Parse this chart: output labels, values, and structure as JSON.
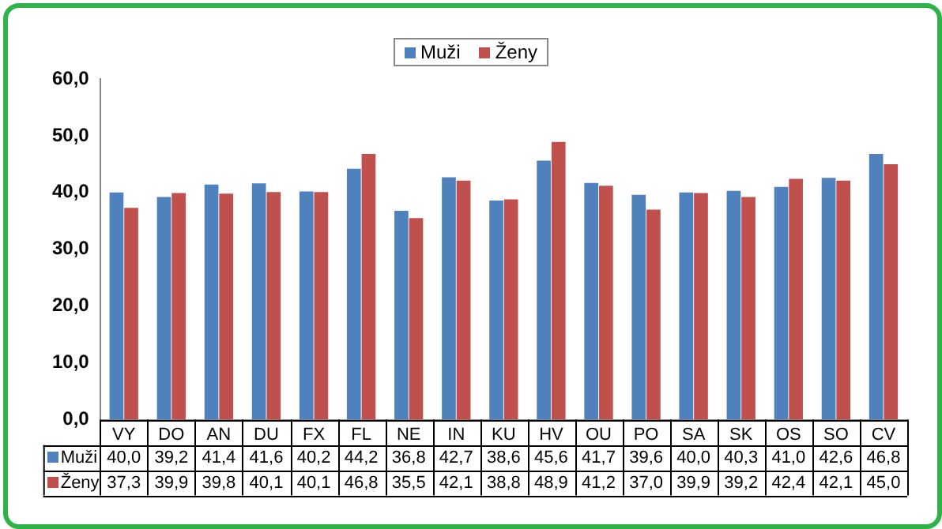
{
  "chart_data": {
    "type": "bar",
    "categories": [
      "VY",
      "DO",
      "AN",
      "DU",
      "FX",
      "FL",
      "NE",
      "IN",
      "KU",
      "HV",
      "OU",
      "PO",
      "SA",
      "SK",
      "OS",
      "SO",
      "CV"
    ],
    "series": [
      {
        "name": "Muži",
        "color": "#4f81bd",
        "values": [
          40.0,
          39.2,
          41.4,
          41.6,
          40.2,
          44.2,
          36.8,
          42.7,
          38.6,
          45.6,
          41.7,
          39.6,
          40.0,
          40.3,
          41.0,
          42.6,
          46.8
        ],
        "value_labels": [
          "40,0",
          "39,2",
          "41,4",
          "41,6",
          "40,2",
          "44,2",
          "36,8",
          "42,7",
          "38,6",
          "45,6",
          "41,7",
          "39,6",
          "40,0",
          "40,3",
          "41,0",
          "42,6",
          "46,8"
        ]
      },
      {
        "name": "Ženy",
        "color": "#c0504d",
        "values": [
          37.3,
          39.9,
          39.8,
          40.1,
          40.1,
          46.8,
          35.5,
          42.1,
          38.8,
          48.9,
          41.2,
          37.0,
          39.9,
          39.2,
          42.4,
          42.1,
          45.0
        ],
        "value_labels": [
          "37,3",
          "39,9",
          "39,8",
          "40,1",
          "40,1",
          "46,8",
          "35,5",
          "42,1",
          "38,8",
          "48,9",
          "41,2",
          "37,0",
          "39,9",
          "39,2",
          "42,4",
          "42,1",
          "45,0"
        ]
      }
    ],
    "ylim": [
      0,
      60
    ],
    "yticks": [
      {
        "value": 0,
        "label": "0,0"
      },
      {
        "value": 10,
        "label": "10,0"
      },
      {
        "value": 20,
        "label": "20,0"
      },
      {
        "value": 30,
        "label": "30,0"
      },
      {
        "value": 40,
        "label": "40,0"
      },
      {
        "value": 50,
        "label": "50,0"
      },
      {
        "value": 60,
        "label": "60,0"
      }
    ],
    "grid": false,
    "legend": "bottom left"
  }
}
